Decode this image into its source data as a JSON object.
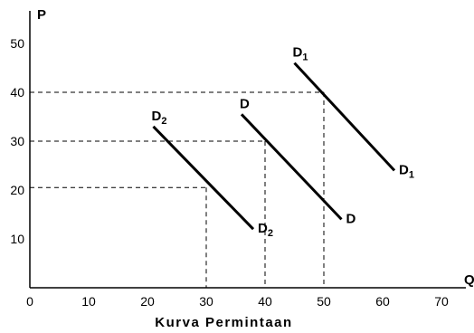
{
  "chart_data": {
    "type": "line",
    "title": "Kurva Permintaan",
    "xlabel": "Q",
    "ylabel": "P",
    "xlim": [
      0,
      75
    ],
    "ylim": [
      0,
      57
    ],
    "x_ticks": [
      0,
      10,
      20,
      30,
      40,
      50,
      60,
      70
    ],
    "y_ticks": [
      10,
      20,
      30,
      40,
      50
    ],
    "grid": false,
    "series": [
      {
        "label_main": "D",
        "label_sub": "2",
        "x": [
          21,
          38
        ],
        "y": [
          33,
          12
        ],
        "labels_at": [
          "start",
          "end"
        ]
      },
      {
        "label_main": "D",
        "label_sub": "",
        "x": [
          36,
          53
        ],
        "y": [
          35.5,
          14
        ],
        "labels_at": [
          "start",
          "end"
        ]
      },
      {
        "label_main": "D",
        "label_sub": "1",
        "x": [
          45,
          62
        ],
        "y": [
          46,
          24
        ],
        "labels_at": [
          "start",
          "end"
        ]
      }
    ],
    "reference_lines": [
      {
        "y": 20.5,
        "x": 30
      },
      {
        "y": 30,
        "x": 40
      },
      {
        "y": 40,
        "x": 50
      }
    ]
  }
}
